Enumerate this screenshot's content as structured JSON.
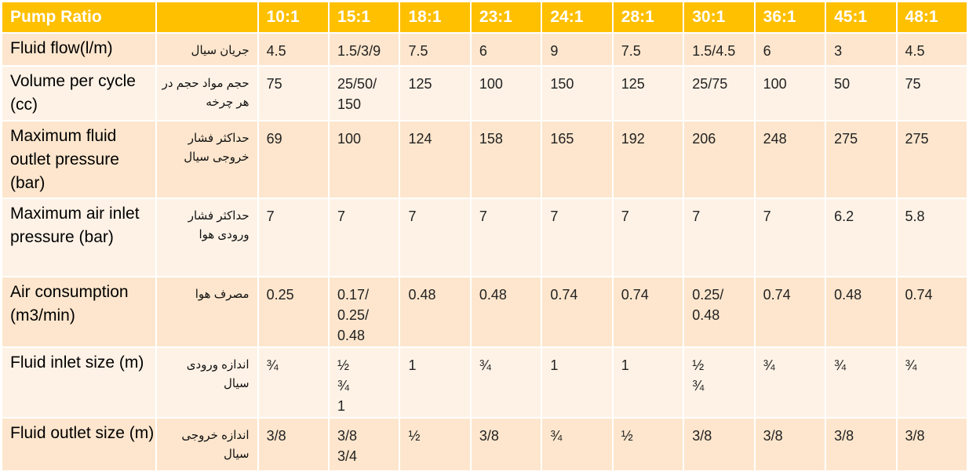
{
  "header": {
    "title": "Pump Ratio",
    "ratios": [
      "10:1",
      "15:1",
      "18:1",
      "23:1",
      "24:1",
      "28:1",
      "30:1",
      "36:1",
      "45:1",
      "48:1"
    ]
  },
  "rows": [
    {
      "label": "Fluid flow(l/m)",
      "label_fa": "جریان سیال",
      "values": [
        "4.5",
        "1.5/3/9",
        "7.5",
        "6",
        "9",
        "7.5",
        "1.5/4.5",
        "6",
        "3",
        "4.5"
      ]
    },
    {
      "label": "Volume per cycle (cc)",
      "label_fa": "حجم مواد حجم در هر چرخه",
      "values": [
        "75",
        "25/50/\n150",
        "125",
        "100",
        "150",
        "125",
        "25/75",
        "100",
        "50",
        "75"
      ]
    },
    {
      "label": "Maximum fluid outlet pressure (bar)",
      "label_fa": "حداکثر فشار خروجی سیال",
      "values": [
        "69",
        "100",
        "124",
        "158",
        "165",
        "192",
        "206",
        "248",
        "275",
        "275"
      ]
    },
    {
      "label": "Maximum air inlet pressure (bar)",
      "label_fa": "حداکثر فشار ورودی هوا",
      "values": [
        "7",
        "7",
        "7",
        "7",
        "7",
        "7",
        "7",
        "7",
        "6.2",
        "5.8"
      ]
    },
    {
      "label": "Air consumption (m3/min)",
      "label_fa": "مصرف هوا",
      "values": [
        "0.25",
        "0.17/\n0.25/\n0.48",
        "0.48",
        "0.48",
        "0.74",
        "0.74",
        "0.25/\n0.48",
        "0.74",
        "0.48",
        "0.74"
      ]
    },
    {
      "label": "Fluid inlet size (m)",
      "label_fa": "اندازه ورودی سیال",
      "values": [
        "¾",
        "½\n¾\n1",
        "1",
        "¾",
        "1",
        "1",
        "½\n¾",
        "¾",
        "¾",
        "¾"
      ]
    },
    {
      "label": "Fluid outlet size (m)",
      "label_fa": "اندازه خروجی سیال",
      "values": [
        "3/8",
        "3/8\n3/4",
        "½",
        "3/8",
        "¾",
        "½",
        "3/8",
        "3/8",
        "3/8",
        "3/8"
      ]
    }
  ]
}
